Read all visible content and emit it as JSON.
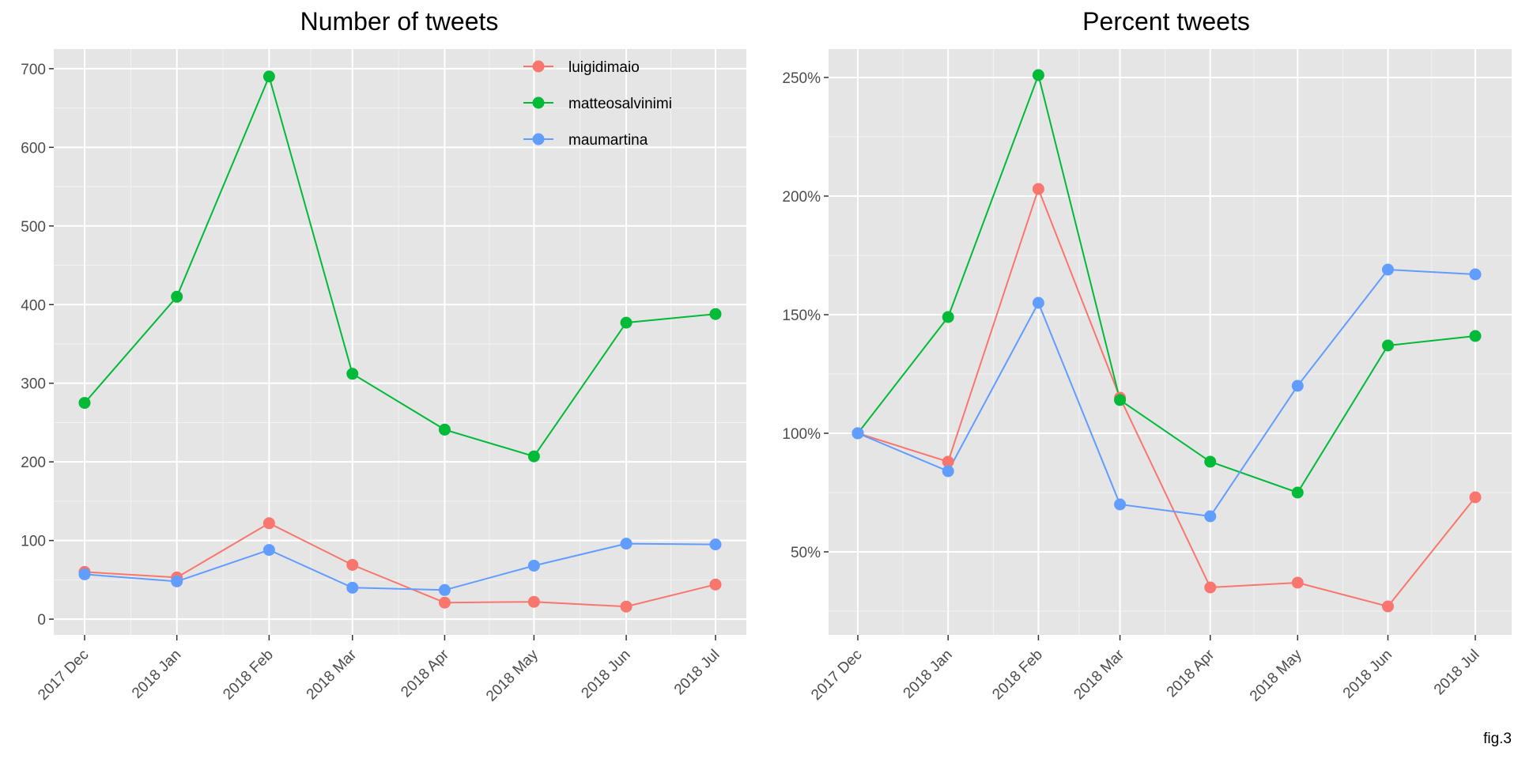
{
  "caption": "fig.3",
  "colors": {
    "panel_background": "#e5e5e5",
    "grid_major": "#ffffff",
    "axis_tick": "#333333"
  },
  "legend": {
    "placement": "top-right inside left panel",
    "entries": [
      {
        "name": "luigidimaio",
        "color": "#F8766D"
      },
      {
        "name": "matteosalvinimi",
        "color": "#00BA38"
      },
      {
        "name": "maumartina",
        "color": "#619CFF"
      }
    ]
  },
  "chart_data": [
    {
      "type": "line",
      "title": "Number of tweets",
      "xlabel": "",
      "ylabel": "",
      "categories": [
        "2017 Dec",
        "2018 Jan",
        "2018 Feb",
        "2018 Mar",
        "2018 Apr",
        "2018 May",
        "2018 Jun",
        "2018 Jul"
      ],
      "x_days": [
        0,
        31,
        62,
        90,
        121,
        151,
        182,
        212
      ],
      "ylim": [
        -20,
        725
      ],
      "yticks": [
        0,
        100,
        200,
        300,
        400,
        500,
        600,
        700
      ],
      "ytick_labels": [
        "0",
        "100",
        "200",
        "300",
        "400",
        "500",
        "600",
        "700"
      ],
      "grid": true,
      "series": [
        {
          "name": "luigidimaio",
          "color": "#F8766D",
          "values": [
            60,
            53,
            122,
            69,
            21,
            22,
            16,
            44
          ]
        },
        {
          "name": "matteosalvinimi",
          "color": "#00BA38",
          "values": [
            275,
            410,
            690,
            312,
            241,
            207,
            377,
            388
          ]
        },
        {
          "name": "maumartina",
          "color": "#619CFF",
          "values": [
            57,
            48,
            88,
            40,
            37,
            68,
            96,
            95
          ]
        }
      ]
    },
    {
      "type": "line",
      "title": "Percent tweets",
      "xlabel": "",
      "ylabel": "",
      "categories": [
        "2017 Dec",
        "2018 Jan",
        "2018 Feb",
        "2018 Mar",
        "2018 Apr",
        "2018 May",
        "2018 Jun",
        "2018 Jul"
      ],
      "x_days": [
        0,
        31,
        62,
        90,
        121,
        151,
        182,
        212
      ],
      "ylim": [
        15,
        262
      ],
      "yticks": [
        50,
        100,
        150,
        200,
        250
      ],
      "ytick_labels": [
        "50%",
        "100%",
        "150%",
        "200%",
        "250%"
      ],
      "grid": true,
      "series": [
        {
          "name": "luigidimaio",
          "color": "#F8766D",
          "values": [
            100,
            88,
            203,
            115,
            35,
            37,
            27,
            73
          ]
        },
        {
          "name": "matteosalvinimi",
          "color": "#00BA38",
          "values": [
            100,
            149,
            251,
            114,
            88,
            75,
            137,
            141
          ]
        },
        {
          "name": "maumartina",
          "color": "#619CFF",
          "values": [
            100,
            84,
            155,
            70,
            65,
            120,
            169,
            167
          ]
        }
      ]
    }
  ]
}
